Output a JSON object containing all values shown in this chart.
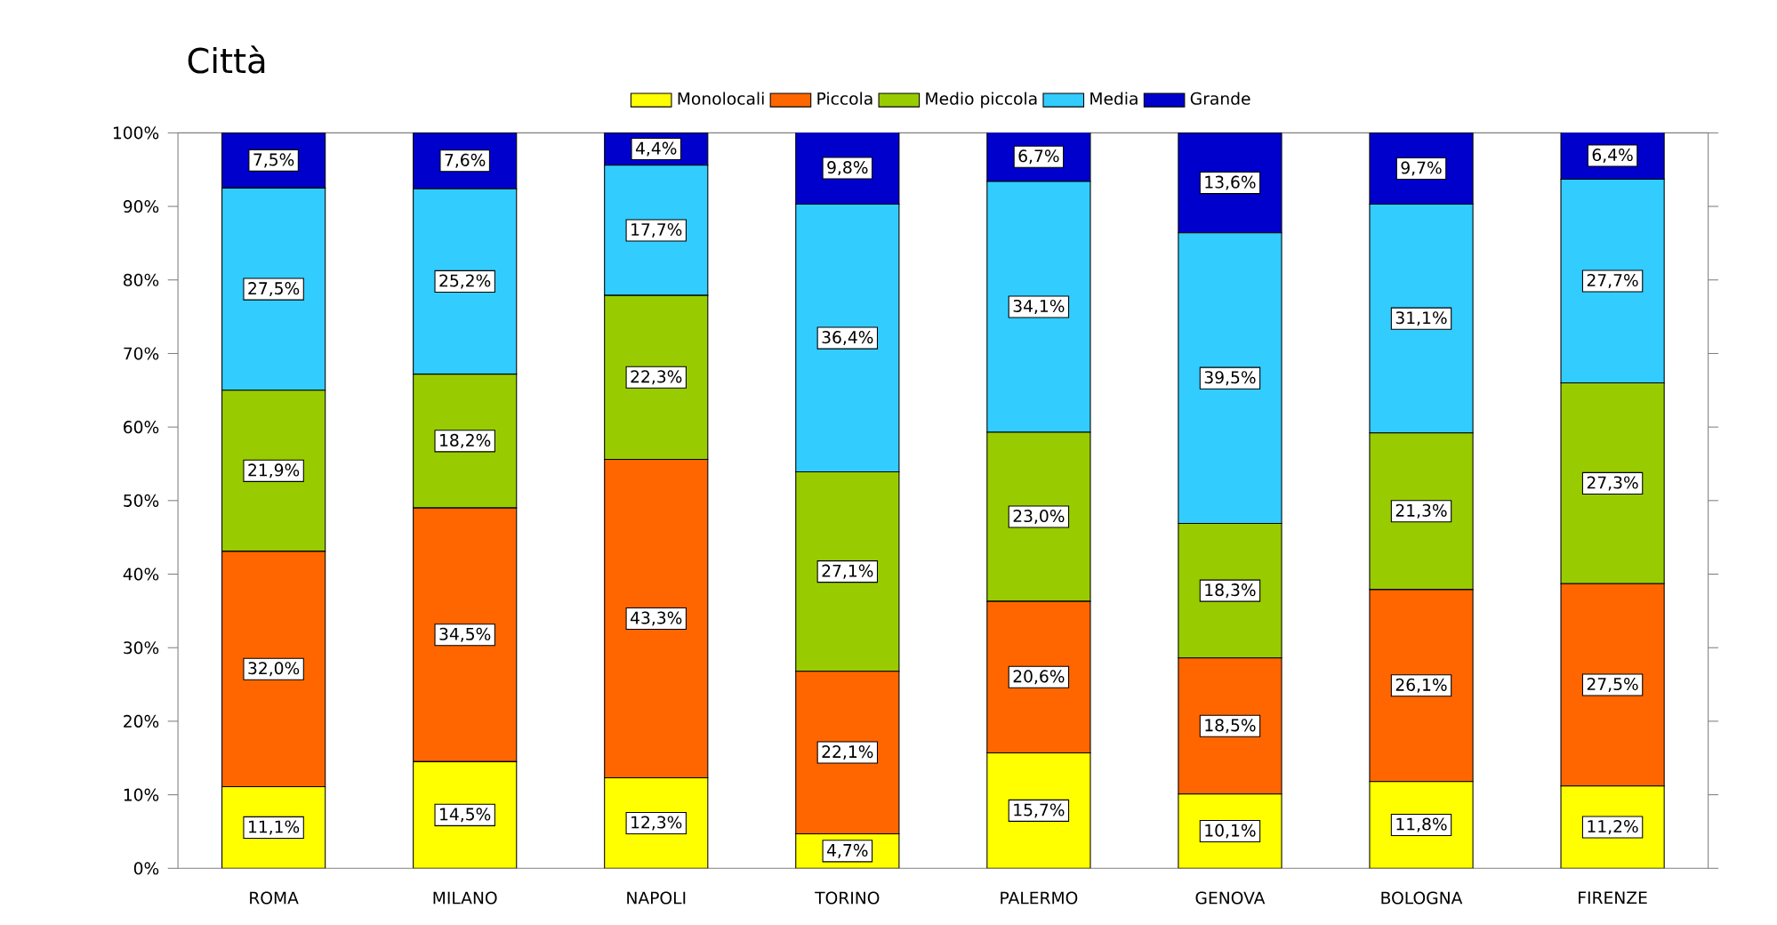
{
  "chart_data": {
    "type": "bar",
    "stacked": true,
    "title": "Città",
    "categories": [
      "ROMA",
      "MILANO",
      "NAPOLI",
      "TORINO",
      "PALERMO",
      "GENOVA",
      "BOLOGNA",
      "FIRENZE"
    ],
    "series": [
      {
        "name": "Monolocali",
        "color": "#ffff00",
        "values": [
          11.1,
          14.5,
          12.3,
          4.7,
          15.7,
          10.1,
          11.8,
          11.2
        ],
        "value_labels": [
          "11,1%",
          "14,5%",
          "12,3%",
          "4,7%",
          "15,7%",
          "10,1%",
          "11,8%",
          "11,2%"
        ]
      },
      {
        "name": "Piccola",
        "color": "#ff6600",
        "values": [
          32.0,
          34.5,
          43.3,
          22.1,
          20.6,
          18.5,
          26.1,
          27.5
        ],
        "value_labels": [
          "32,0%",
          "34,5%",
          "43,3%",
          "22,1%",
          "20,6%",
          "18,5%",
          "26,1%",
          "27,5%"
        ]
      },
      {
        "name": "Medio piccola",
        "color": "#99cc00",
        "values": [
          21.9,
          18.2,
          22.3,
          27.1,
          23.0,
          18.3,
          21.3,
          27.3
        ],
        "value_labels": [
          "21,9%",
          "18,2%",
          "22,3%",
          "27,1%",
          "23,0%",
          "18,3%",
          "21,3%",
          "27,3%"
        ]
      },
      {
        "name": "Media",
        "color": "#33ccff",
        "values": [
          27.5,
          25.2,
          17.7,
          36.4,
          34.1,
          39.5,
          31.1,
          27.7
        ],
        "value_labels": [
          "27,5%",
          "25,2%",
          "17,7%",
          "36,4%",
          "34,1%",
          "39,5%",
          "31,1%",
          "27,7%"
        ]
      },
      {
        "name": "Grande",
        "color": "#0000cc",
        "values": [
          7.5,
          7.6,
          4.4,
          9.8,
          6.7,
          13.6,
          9.7,
          6.4
        ],
        "value_labels": [
          "7,5%",
          "7,6%",
          "4,4%",
          "9,8%",
          "6,7%",
          "13,6%",
          "9,7%",
          "6,4%"
        ]
      }
    ],
    "ylim": [
      0,
      100
    ],
    "yticks": [
      {
        "value": 0,
        "label": "0%"
      },
      {
        "value": 10,
        "label": "10%"
      },
      {
        "value": 20,
        "label": "20%"
      },
      {
        "value": 30,
        "label": "30%"
      },
      {
        "value": 40,
        "label": "40%"
      },
      {
        "value": 50,
        "label": "50%"
      },
      {
        "value": 60,
        "label": "60%"
      },
      {
        "value": 70,
        "label": "70%"
      },
      {
        "value": 80,
        "label": "80%"
      },
      {
        "value": 90,
        "label": "90%"
      },
      {
        "value": 100,
        "label": "100%"
      }
    ],
    "legend": "top"
  }
}
